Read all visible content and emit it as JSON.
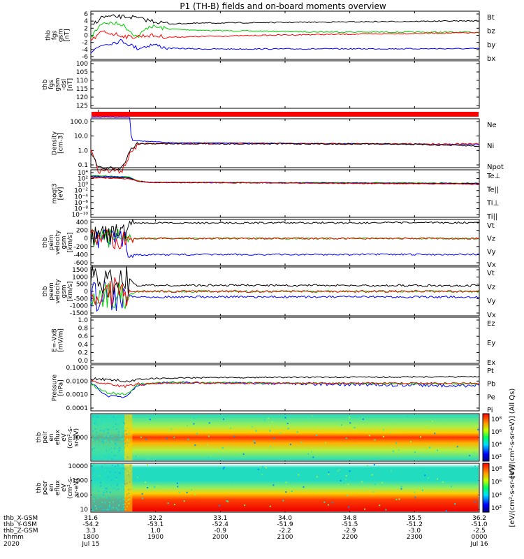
{
  "title": "P1 (TH-B) fields and on-board moments overview",
  "panels": [
    {
      "id": "fgs",
      "ylabel_lines": [
        "thb",
        "fgs",
        "gsm",
        "[nT]"
      ],
      "yticks": [
        "6",
        "4",
        "2",
        "0",
        "-2",
        "-4",
        "-6"
      ],
      "ylim": [
        -6,
        7
      ],
      "legend": [
        {
          "label": "Bt",
          "color": "#000000"
        },
        {
          "label": "bz",
          "color": "#ff0000"
        },
        {
          "label": "by",
          "color": "#00cc00"
        },
        {
          "label": "bx",
          "color": "#0000ff"
        }
      ]
    },
    {
      "id": "fgs_dsl",
      "ylabel_lines": [
        "thb",
        "fgs",
        "gsm",
        "-dsl",
        "[nT]"
      ],
      "yticks": [
        "100",
        "105",
        "110",
        "115",
        "120",
        "125"
      ],
      "ylim": [
        100,
        128
      ],
      "legend": []
    },
    {
      "id": "density",
      "ylabel_lines": [
        "Density",
        "[cm-3]"
      ],
      "yticks": [
        "100.0",
        "10.0",
        "1.0",
        "0.1"
      ],
      "legend": [
        {
          "label": "Ne",
          "color": "#ff0000"
        },
        {
          "label": "Ni",
          "color": "#000000"
        },
        {
          "label": "Npot",
          "color": "#0000ff"
        }
      ]
    },
    {
      "id": "temperature",
      "ylabel_lines": [
        "moqt3",
        "[eV]"
      ],
      "yticks": [
        "10⁴",
        "10²",
        "10⁰",
        "10⁻²",
        "10⁻⁴",
        "10⁻⁶",
        "10⁻⁸",
        "10⁻¹⁰"
      ],
      "legend": [
        {
          "label": "Te⊥",
          "color": "#ff0000"
        },
        {
          "label": "Te||",
          "color": "#000000"
        },
        {
          "label": "Ti⊥",
          "color": "#0000ff"
        },
        {
          "label": "Ti||",
          "color": "#00cc00"
        }
      ]
    },
    {
      "id": "ion_velocity",
      "ylabel_lines": [
        "thb",
        "peim",
        "velocity",
        "gsm",
        "[km/s]"
      ],
      "yticks": [
        "400",
        "200",
        "0",
        "-200",
        "-400",
        "-600"
      ],
      "legend": [
        {
          "label": "Vt",
          "color": "#000000"
        },
        {
          "label": "Vz",
          "color": "#ff0000"
        },
        {
          "label": "Vy",
          "color": "#00cc00"
        },
        {
          "label": "Vx",
          "color": "#0000ff"
        }
      ]
    },
    {
      "id": "electron_velocity",
      "ylabel_lines": [
        "thb",
        "peem",
        "velocity",
        "gsm",
        "[km/s]"
      ],
      "yticks": [
        "1500",
        "1000",
        "500",
        "0",
        "-500",
        "-1000",
        "-1500"
      ],
      "legend": [
        {
          "label": "Vt",
          "color": "#000000"
        },
        {
          "label": "Vz",
          "color": "#ff0000"
        },
        {
          "label": "Vy",
          "color": "#00cc00"
        },
        {
          "label": "Vx",
          "color": "#0000ff"
        }
      ]
    },
    {
      "id": "efield",
      "ylabel_lines": [
        "E=-VxB",
        "[mV/m]"
      ],
      "yticks": [
        "1.0",
        "0.8",
        "0.6",
        "0.4",
        "0.2",
        "0.0"
      ],
      "legend": [
        {
          "label": "Ez",
          "color": "#ff0000"
        },
        {
          "label": "Ey",
          "color": "#00cc00"
        },
        {
          "label": "Ex",
          "color": "#0000ff"
        }
      ]
    },
    {
      "id": "pressure",
      "ylabel_lines": [
        "Pressure",
        "[nPa]"
      ],
      "yticks": [
        "0.1000",
        "0.0100",
        "0.0010",
        "0.0001"
      ],
      "legend": [
        {
          "label": "Pt",
          "color": "#000000"
        },
        {
          "label": "Pb",
          "color": "#ff0000"
        },
        {
          "label": "Pe",
          "color": "#00cc00"
        },
        {
          "label": "Pi",
          "color": "#0000ff"
        }
      ]
    },
    {
      "id": "ion_spec",
      "ylabel_lines": [
        "thb",
        "peir",
        "en",
        "eflux",
        "eV",
        "(cm²-s-",
        "sr-eV)"
      ],
      "yticks": [
        "1000"
      ],
      "colorbar_ticks": [
        "10⁸",
        "10⁶",
        "10⁴",
        "10²"
      ]
    },
    {
      "id": "electron_spec",
      "ylabel_lines": [
        "thb",
        "peer",
        "en",
        "eflux",
        "eV",
        "(cm²-s-",
        "sr-eV)"
      ],
      "yticks": [
        "10000",
        "1000",
        "100",
        "10"
      ],
      "colorbar_ticks": [
        "10⁸",
        "10⁶",
        "10⁴",
        "10²"
      ]
    }
  ],
  "colorbar_label": "[eV/(cm²-s-sr-eV)] (All Qs)",
  "colorbar_label_2": "[eV/(cm²-s-sr-eV)]",
  "footer": {
    "rows": [
      {
        "label": "thb_X-GSM",
        "values": [
          "31.6",
          "32.2",
          "33.1",
          "34.0",
          "34.8",
          "35.5",
          "36.2"
        ]
      },
      {
        "label": "thb_Y-GSM",
        "values": [
          "-54.2",
          "-53.1",
          "-52.4",
          "-51.9",
          "-51.5",
          "-51.2",
          "-51.0"
        ]
      },
      {
        "label": "thb_Z-GSM",
        "values": [
          "3.3",
          "1.0",
          "-0.9",
          "-2.2",
          "-2.9",
          "-3.0",
          "-2.5"
        ]
      },
      {
        "label": "hhmm",
        "values": [
          "1800",
          "1900",
          "2000",
          "2100",
          "2200",
          "2300",
          "0000"
        ]
      }
    ],
    "year": "2020",
    "date_start": "Jul 15",
    "date_end": "Jul 16"
  },
  "chart_data": {
    "type": "line",
    "title": "P1 (TH-B) fields and on-board moments overview",
    "x_label": "hhmm",
    "x": [
      "1800",
      "1900",
      "2000",
      "2100",
      "2200",
      "2300",
      "0000"
    ],
    "series": [
      {
        "name": "Bt",
        "panel": "fgs",
        "values": [
          5.5,
          3.3,
          3.8,
          3.8,
          4.0,
          4.1,
          4.4
        ]
      },
      {
        "name": "bz",
        "panel": "fgs",
        "values": [
          1.5,
          0.3,
          0.3,
          0.6,
          0.8,
          1.0,
          1.2
        ]
      },
      {
        "name": "by",
        "panel": "fgs",
        "values": [
          3.0,
          2.5,
          1.8,
          1.6,
          1.3,
          1.3,
          1.3
        ]
      },
      {
        "name": "bx",
        "panel": "fgs",
        "values": [
          -2.0,
          -3.0,
          -3.2,
          -3.2,
          -3.1,
          -3.0,
          -3.1
        ]
      },
      {
        "name": "Ni",
        "panel": "density",
        "values": [
          0.05,
          2.5,
          3.0,
          3.0,
          2.8,
          2.5,
          2.0
        ]
      },
      {
        "name": "Npot",
        "panel": "density",
        "values": [
          200,
          4.0,
          3.5,
          3.5,
          3.2,
          2.8,
          2.4
        ]
      },
      {
        "name": "Vt (ion)",
        "panel": "ion_velocity",
        "values": [
          100,
          380,
          390,
          390,
          390,
          385,
          380
        ]
      },
      {
        "name": "Vx (ion)",
        "panel": "ion_velocity",
        "values": [
          0,
          -400,
          -400,
          -400,
          -400,
          -395,
          -390
        ]
      },
      {
        "name": "Vt (electron)",
        "panel": "electron_velocity",
        "values": [
          800,
          400,
          420,
          420,
          410,
          410,
          400
        ]
      },
      {
        "name": "Vx (electron)",
        "panel": "electron_velocity",
        "values": [
          -300,
          -380,
          -400,
          -400,
          -390,
          -390,
          -380
        ]
      },
      {
        "name": "Pt",
        "panel": "pressure",
        "values": [
          0.015,
          0.017,
          0.018,
          0.018,
          0.019,
          0.02,
          0.021
        ]
      },
      {
        "name": "Pb",
        "panel": "pressure",
        "values": [
          0.01,
          0.007,
          0.007,
          0.007,
          0.007,
          0.007,
          0.007
        ]
      }
    ]
  }
}
